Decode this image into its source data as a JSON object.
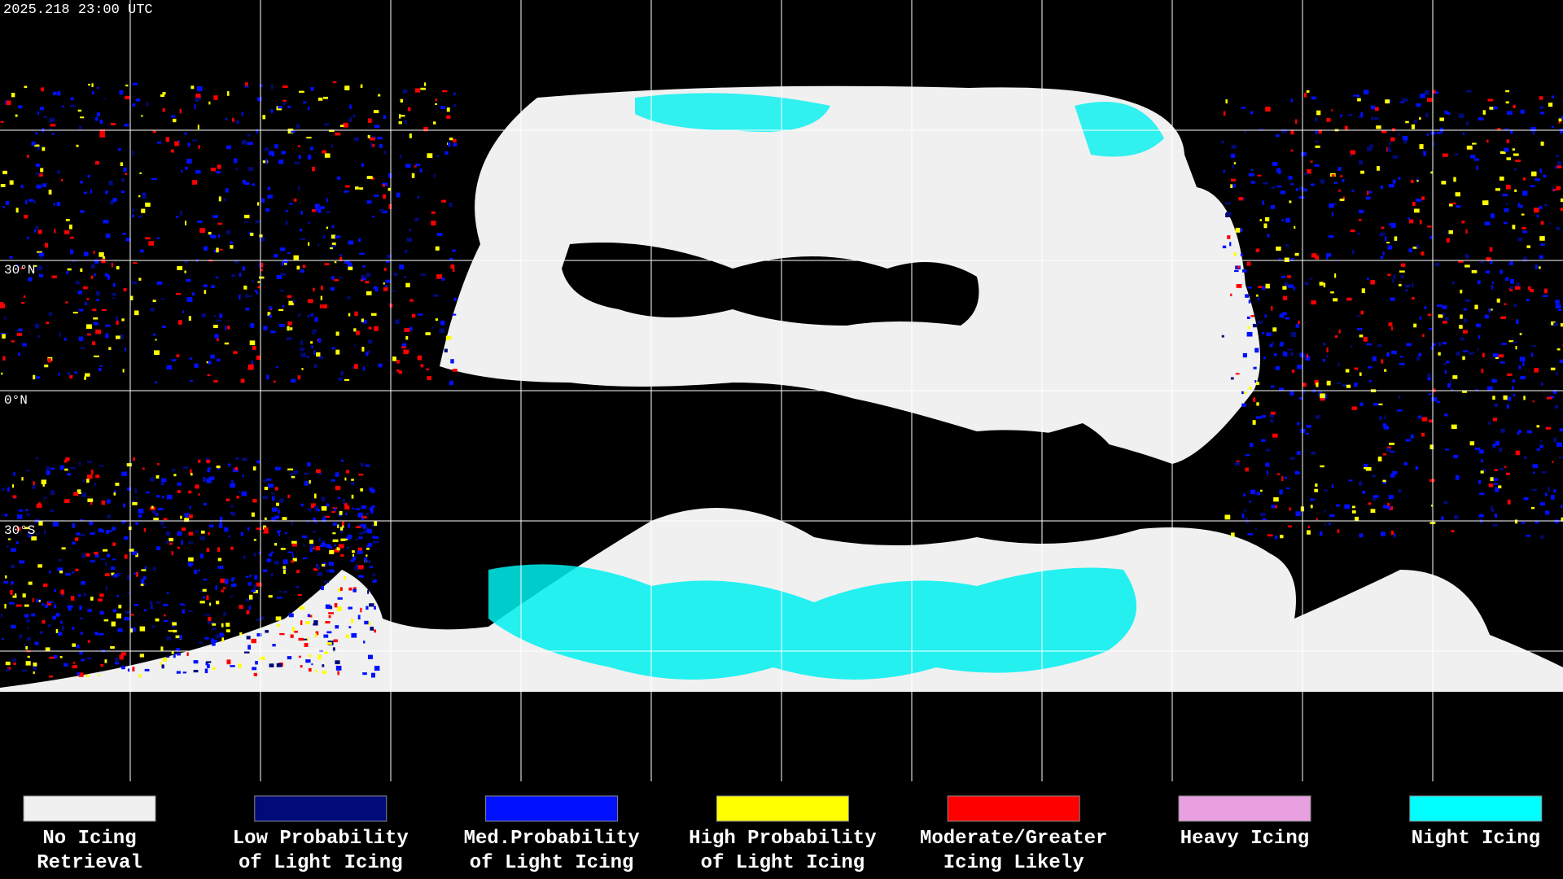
{
  "header": {
    "timestamp": "2025.218 23:00 UTC"
  },
  "map": {
    "lat_labels": [
      "30°N",
      "0°N",
      "30°S"
    ]
  },
  "legend": {
    "items": [
      {
        "lines": [
          "No Icing",
          "Retrieval"
        ],
        "color": "#f0f0f0"
      },
      {
        "lines": [
          "Low Probability",
          "of Light Icing"
        ],
        "color": "#000a78"
      },
      {
        "lines": [
          "Med.Probability",
          "of Light Icing"
        ],
        "color": "#0010ff"
      },
      {
        "lines": [
          "High Probability",
          "of Light Icing"
        ],
        "color": "#ffff00"
      },
      {
        "lines": [
          "Moderate/Greater",
          "Icing Likely"
        ],
        "color": "#ff0000"
      },
      {
        "lines": [
          "Heavy Icing"
        ],
        "color": "#e8a0e0"
      },
      {
        "lines": [
          "Night Icing"
        ],
        "color": "#00ffff"
      }
    ]
  }
}
